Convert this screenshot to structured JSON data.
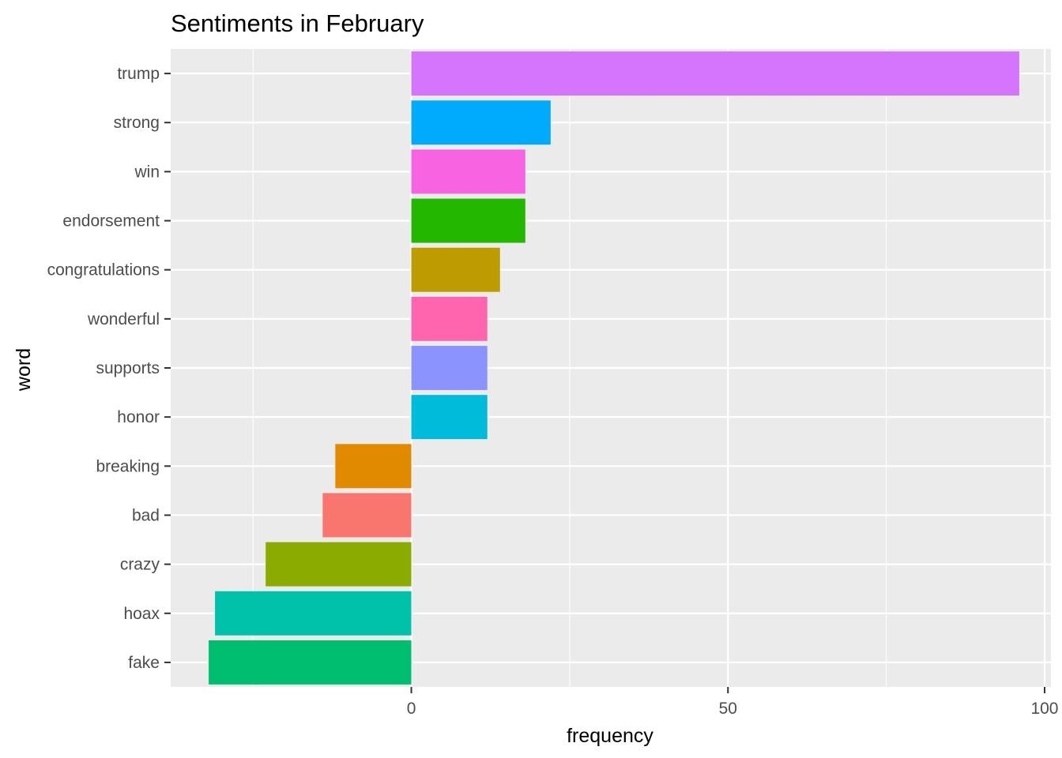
{
  "chart_data": {
    "type": "bar",
    "orientation": "horizontal",
    "title": "Sentiments in February",
    "xlabel": "frequency",
    "ylabel": "word",
    "xlim": [
      -38,
      101
    ],
    "xticks": [
      0,
      50,
      100
    ],
    "grid": true,
    "legend": "none",
    "categories": [
      "trump",
      "strong",
      "win",
      "endorsement",
      "congratulations",
      "wonderful",
      "supports",
      "honor",
      "breaking",
      "bad",
      "crazy",
      "hoax",
      "fake"
    ],
    "values": [
      96,
      22,
      18,
      18,
      14,
      12,
      12,
      12,
      -12,
      -14,
      -23,
      -31,
      -32
    ],
    "colors": [
      "#D575FE",
      "#00ABFD",
      "#F763E0",
      "#24B700",
      "#BE9C00",
      "#FF65AE",
      "#8B93FF",
      "#00BBDA",
      "#E18A00",
      "#F8766D",
      "#8CAB00",
      "#00C1AA",
      "#00BE70"
    ]
  }
}
